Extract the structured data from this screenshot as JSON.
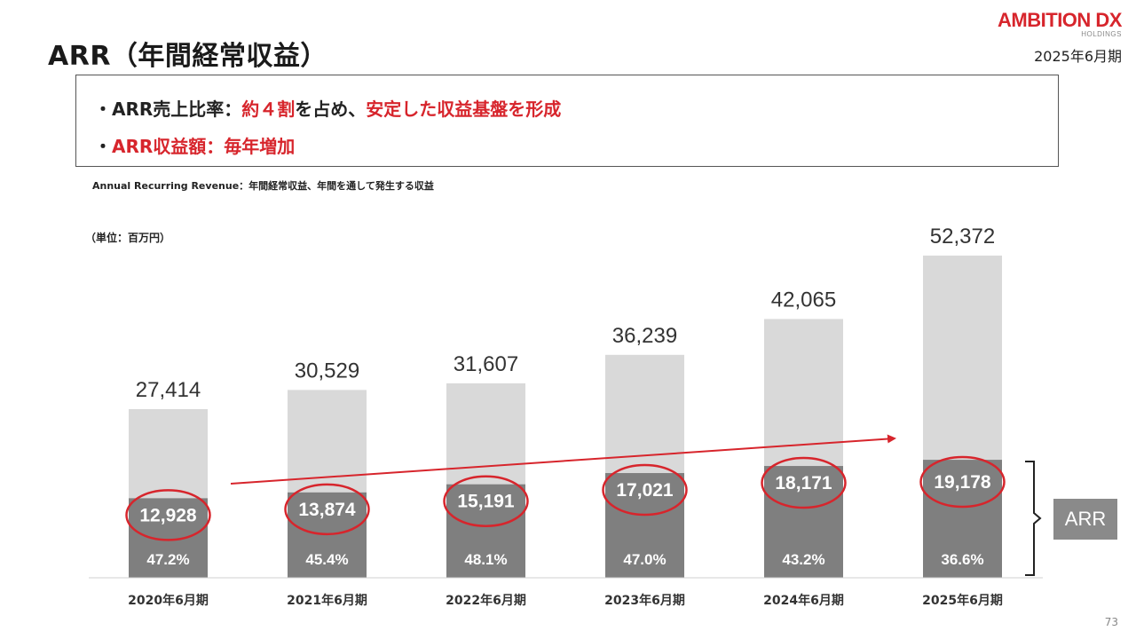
{
  "slide": {
    "title": "ARR（年間経常収益）",
    "logo_main": "AMBITION DX",
    "logo_sub": "HOLDINGS",
    "period": "2025年6月期",
    "summary": {
      "line1_prefix": "・ARR売上比率：",
      "line1_red1": "約４割",
      "line1_mid": "を占め、",
      "line1_red2": "安定した収益基盤を形成",
      "line2_prefix": "・",
      "line2_red": "ARR収益額：毎年増加"
    },
    "footnote": "Annual Recurring Revenue：年間経常収益、年間を通して発生する収益",
    "unit": "（単位：百万円）",
    "arr_label": "ARR",
    "page_number": "73"
  },
  "colors": {
    "accent_red": "#d7252c",
    "bar_total": "#d9d9d9",
    "bar_arr": "#7f7f7f",
    "arr_label_bg": "#8a8a8a"
  },
  "chart_data": {
    "type": "bar",
    "stacked": true,
    "categories": [
      "2020年6月期",
      "2021年6月期",
      "2022年6月期",
      "2023年6月期",
      "2024年6月期",
      "2025年6月期"
    ],
    "totals": [
      27414,
      30529,
      31607,
      36239,
      42065,
      52372
    ],
    "total_labels": [
      "27,414",
      "30,529",
      "31,607",
      "36,239",
      "42,065",
      "52,372"
    ],
    "series": [
      {
        "name": "ARR",
        "values": [
          12928,
          13874,
          15191,
          17021,
          18171,
          19178
        ]
      }
    ],
    "arr_labels": [
      "12,928",
      "13,874",
      "15,191",
      "17,021",
      "18,171",
      "19,178"
    ],
    "ratio_labels": [
      "47.2%",
      "45.4%",
      "48.1%",
      "47.0%",
      "43.2%",
      "36.6%"
    ],
    "ylim": [
      0,
      52372
    ]
  }
}
